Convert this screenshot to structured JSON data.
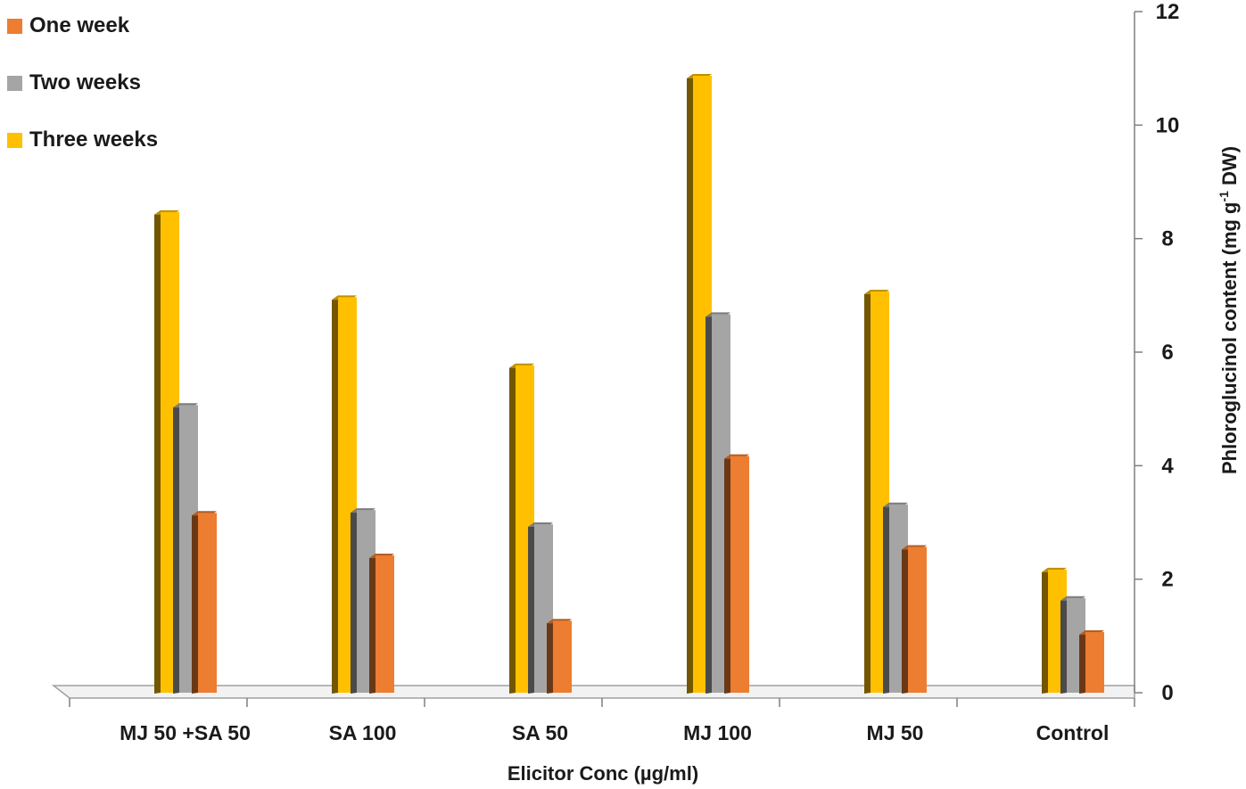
{
  "chart_data": {
    "type": "bar",
    "categories": [
      "MJ 50 +SA 50",
      "SA 100",
      "SA 50",
      "MJ 100",
      "MJ 50",
      "Control"
    ],
    "series": [
      {
        "name": "Three weeks",
        "color": "#ffc000",
        "values": [
          8.5,
          7.0,
          5.8,
          10.9,
          7.1,
          2.2
        ]
      },
      {
        "name": "Two weeks",
        "color": "#a5a5a5",
        "values": [
          5.1,
          3.25,
          3.0,
          6.7,
          3.35,
          1.7
        ]
      },
      {
        "name": "One week",
        "color": "#ed7d31",
        "values": [
          3.2,
          2.45,
          1.3,
          4.2,
          2.6,
          1.1
        ]
      }
    ],
    "legend_order": [
      "One week",
      "Two weeks",
      "Three weeks"
    ],
    "xlabel": "Elicitor Conc (µg/ml)",
    "ylabel_parts": {
      "before": "Phloroglucinol content (mg g",
      "sup": "-1",
      "after": " DW)"
    },
    "yticks": [
      0,
      2,
      4,
      6,
      8,
      10,
      12
    ],
    "ylim": [
      0,
      12
    ],
    "legend_position": "top-left",
    "y_axis_side": "right",
    "grid": false,
    "style": "3d"
  }
}
